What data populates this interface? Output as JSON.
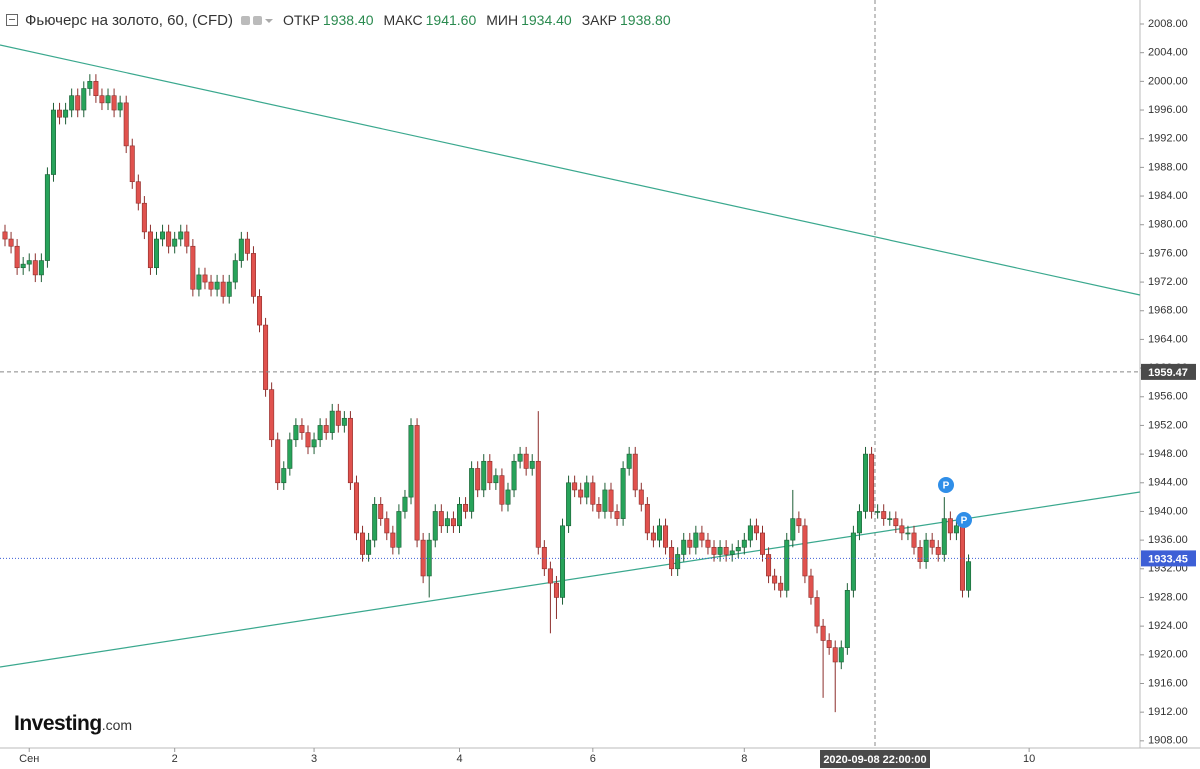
{
  "chart_data": {
    "type": "candlestick",
    "title": "Фьючерс на золото, 60, (CFD)",
    "up_color": "#27a35a",
    "down_color": "#e0524e",
    "grid": false,
    "ylim": [
      1907.0,
      2011.35
    ],
    "yticks": [
      {
        "value": 1908,
        "label": "1908.00"
      },
      {
        "value": 1912,
        "label": "1912.00"
      },
      {
        "value": 1916,
        "label": "1916.00"
      },
      {
        "value": 1920,
        "label": "1920.00"
      },
      {
        "value": 1924,
        "label": "1924.00"
      },
      {
        "value": 1928,
        "label": "1928.00"
      },
      {
        "value": 1932,
        "label": "1932.00"
      },
      {
        "value": 1936,
        "label": "1936.00"
      },
      {
        "value": 1940,
        "label": "1940.00"
      },
      {
        "value": 1944,
        "label": "1944.00"
      },
      {
        "value": 1948,
        "label": "1948.00"
      },
      {
        "value": 1952,
        "label": "1952.00"
      },
      {
        "value": 1956,
        "label": "1956.00"
      },
      {
        "value": 1960,
        "label": "1960.00"
      },
      {
        "value": 1964,
        "label": "1964.00"
      },
      {
        "value": 1968,
        "label": "1968.00"
      },
      {
        "value": 1972,
        "label": "1972.00"
      },
      {
        "value": 1976,
        "label": "1976.00"
      },
      {
        "value": 1980,
        "label": "1980.00"
      },
      {
        "value": 1984,
        "label": "1984.00"
      },
      {
        "value": 1988,
        "label": "1988.00"
      },
      {
        "value": 1992,
        "label": "1992.00"
      },
      {
        "value": 1996,
        "label": "1996.00"
      },
      {
        "value": 2000,
        "label": "2000.00"
      },
      {
        "value": 2004,
        "label": "2004.00"
      },
      {
        "value": 2008,
        "label": "2008.00"
      }
    ],
    "categories": [
      null,
      null,
      null,
      null,
      "Сен",
      null,
      null,
      null,
      null,
      null,
      null,
      null,
      null,
      null,
      null,
      null,
      null,
      null,
      null,
      null,
      null,
      null,
      null,
      null,
      null,
      null,
      null,
      null,
      "2",
      null,
      null,
      null,
      null,
      null,
      null,
      null,
      null,
      null,
      null,
      null,
      null,
      null,
      null,
      null,
      null,
      null,
      null,
      null,
      null,
      null,
      null,
      "3",
      null,
      null,
      null,
      null,
      null,
      null,
      null,
      null,
      null,
      null,
      null,
      null,
      null,
      null,
      null,
      null,
      null,
      null,
      null,
      null,
      null,
      null,
      null,
      "4",
      null,
      null,
      null,
      null,
      null,
      null,
      null,
      null,
      null,
      null,
      null,
      null,
      null,
      null,
      null,
      null,
      null,
      null,
      null,
      null,
      null,
      "6",
      null,
      null,
      null,
      null,
      null,
      null,
      null,
      null,
      null,
      null,
      null,
      null,
      null,
      null,
      null,
      null,
      null,
      null,
      null,
      null,
      null,
      null,
      null,
      null,
      "8",
      null,
      null,
      null,
      null,
      null,
      null,
      null,
      null,
      null,
      null,
      null,
      null,
      null,
      null,
      null,
      null,
      null,
      null,
      null,
      null,
      null,
      null,
      null,
      null,
      null,
      null,
      null,
      null,
      null,
      null,
      null,
      null,
      null,
      null,
      null,
      null,
      null,
      null,
      null,
      null,
      null,
      null,
      null,
      null,
      null,
      null,
      "10"
    ],
    "open": [
      1979,
      1978,
      1977,
      1974,
      1974.5,
      1975,
      1973,
      1975,
      1987,
      1996,
      1995,
      1996,
      1998,
      1996,
      1999,
      2000,
      1998,
      1997,
      1998,
      1996,
      1997,
      1991,
      1986,
      1983,
      1979,
      1974,
      1978,
      1979,
      1977,
      1978,
      1979,
      1977,
      1971,
      1973,
      1972,
      1971,
      1972,
      1970,
      1972,
      1975,
      1978,
      1976,
      1970,
      1966,
      1957,
      1950,
      1944,
      1946,
      1950,
      1952,
      1951,
      1949,
      1950,
      1952,
      1951,
      1954,
      1952,
      1953,
      1944,
      1937,
      1934,
      1936,
      1941,
      1939,
      1937,
      1935,
      1940,
      1942,
      1952,
      1936,
      1931,
      1936,
      1940,
      1938,
      1939,
      1938,
      1941,
      1940,
      1946,
      1943,
      1947,
      1944,
      1945,
      1941,
      1943,
      1947,
      1948,
      1946,
      1947,
      1935,
      1932,
      1930,
      1928,
      1938,
      1944,
      1943,
      1942,
      1944,
      1941,
      1940,
      1943,
      1940,
      1939,
      1946,
      1948,
      1943,
      1941,
      1937,
      1936,
      1938,
      1935,
      1932,
      1934,
      1936,
      1935,
      1937,
      1936,
      1935,
      1934,
      1935,
      1934,
      1934.5,
      1935,
      1936,
      1938,
      1937,
      1934,
      1931,
      1930,
      1929,
      1936,
      1939,
      1938,
      1931,
      1928,
      1924,
      1922,
      1921,
      1919,
      1921,
      1929,
      1937,
      1940,
      1948,
      1940,
      1940,
      1939,
      1939,
      1938,
      1937,
      1937,
      1935,
      1933,
      1936,
      1935,
      1934,
      1939,
      1937,
      1938,
      1929,
      null,
      null,
      null,
      null,
      null,
      null,
      null,
      null,
      null,
      null
    ],
    "high": [
      1980,
      1979,
      1978,
      1975.5,
      1976,
      1976,
      1976,
      1988,
      1997,
      1997,
      1997,
      1999,
      1999,
      2000,
      2001,
      2001,
      1999,
      1999,
      1999,
      1998,
      1998,
      1992,
      1987,
      1984,
      1980,
      1979,
      1980,
      1980,
      1979,
      1980,
      1980,
      1978,
      1974,
      1974,
      1973,
      1973,
      1973,
      1973,
      1976,
      1979,
      1979,
      1977,
      1971,
      1967,
      1958,
      1951,
      1947,
      1951,
      1953,
      1953,
      1952,
      1951,
      1953,
      1953,
      1955,
      1955,
      1954,
      1954,
      1945,
      1938,
      1937,
      1942,
      1942,
      1940,
      1938,
      1941,
      1943,
      1953,
      1953,
      1937,
      1937,
      1941,
      1941,
      1940,
      1940,
      1942,
      1942,
      1947,
      1947,
      1948,
      1948,
      1946,
      1946,
      1944,
      1948,
      1949,
      1949,
      1948,
      1954,
      1936,
      1933,
      1931,
      1939,
      1945,
      1945,
      1944,
      1945,
      1945,
      1942,
      1944,
      1944,
      1941,
      1947,
      1949,
      1949,
      1944,
      1942,
      1938,
      1939,
      1939,
      1936,
      1935,
      1937,
      1937,
      1938,
      1938,
      1937,
      1936,
      1936,
      1936,
      1935.5,
      1936,
      1937,
      1939,
      1939,
      1938,
      1935,
      1932,
      1931,
      1937,
      1943,
      1940,
      1939,
      1932,
      1929,
      1925,
      1923,
      1922,
      1922,
      1930,
      1938,
      1941,
      1949,
      1949,
      1941,
      1941,
      1940,
      1940,
      1939,
      1938,
      1938,
      1936,
      1937,
      1937,
      1936,
      1942,
      1940,
      1939,
      1939,
      1934,
      null,
      null,
      null,
      null,
      null,
      null,
      null,
      null,
      null,
      null
    ],
    "low": [
      1977,
      1976,
      1973,
      1973,
      1973.5,
      1972,
      1972,
      1974,
      1986,
      1994,
      1994,
      1995,
      1995,
      1995,
      1998,
      1997,
      1996,
      1996,
      1995,
      1995,
      1990,
      1985,
      1982,
      1978,
      1973,
      1973,
      1977,
      1976,
      1976,
      1977,
      1976,
      1970,
      1970,
      1971,
      1970,
      1970,
      1969,
      1969,
      1971,
      1974,
      1975,
      1969,
      1965,
      1956,
      1949,
      1943,
      1943,
      1945,
      1949,
      1950,
      1948,
      1948,
      1949,
      1950,
      1950,
      1951,
      1951,
      1943,
      1936,
      1933,
      1933,
      1935,
      1938,
      1936,
      1934,
      1934,
      1939,
      1941,
      1935,
      1930,
      1928,
      1935,
      1937,
      1937,
      1937,
      1937,
      1939,
      1939,
      1942,
      1942,
      1943,
      1943,
      1940,
      1940,
      1942,
      1946,
      1945,
      1945,
      1934,
      1931,
      1923,
      1925,
      1927,
      1937,
      1942,
      1941,
      1941,
      1940,
      1939,
      1939,
      1939,
      1938,
      1938,
      1945,
      1942,
      1940,
      1936,
      1935,
      1935,
      1934,
      1931,
      1931,
      1933,
      1934,
      1934,
      1935,
      1934,
      1933,
      1933,
      1933,
      1933,
      1933.5,
      1934,
      1935,
      1936,
      1933,
      1930,
      1929,
      1928,
      1928,
      1935,
      1937,
      1930,
      1927,
      1923,
      1914,
      1920,
      1912,
      1918,
      1920,
      1928,
      1936,
      1939,
      1939,
      1939,
      1938,
      1938,
      1937,
      1936,
      1936,
      1934,
      1932,
      1932,
      1934,
      1933,
      1933,
      1936,
      1936,
      1928,
      1928,
      null,
      null,
      null,
      null,
      null,
      null,
      null,
      null,
      null,
      null
    ],
    "close": [
      1978,
      1977,
      1974,
      1974.5,
      1975,
      1973,
      1975,
      1987,
      1996,
      1995,
      1996,
      1998,
      1996,
      1999,
      2000,
      1998,
      1997,
      1998,
      1996,
      1997,
      1991,
      1986,
      1983,
      1979,
      1974,
      1978,
      1979,
      1977,
      1978,
      1979,
      1977,
      1971,
      1973,
      1972,
      1971,
      1972,
      1970,
      1972,
      1975,
      1978,
      1976,
      1970,
      1966,
      1957,
      1950,
      1944,
      1946,
      1950,
      1952,
      1951,
      1949,
      1950,
      1952,
      1951,
      1954,
      1952,
      1953,
      1944,
      1937,
      1934,
      1936,
      1941,
      1939,
      1937,
      1935,
      1940,
      1942,
      1952,
      1936,
      1931,
      1936,
      1940,
      1938,
      1939,
      1938,
      1941,
      1940,
      1946,
      1943,
      1947,
      1944,
      1945,
      1941,
      1943,
      1947,
      1948,
      1946,
      1947,
      1935,
      1932,
      1930,
      1928,
      1938,
      1944,
      1943,
      1942,
      1944,
      1941,
      1940,
      1943,
      1940,
      1939,
      1946,
      1948,
      1943,
      1941,
      1937,
      1936,
      1938,
      1935,
      1932,
      1934,
      1936,
      1935,
      1937,
      1936,
      1935,
      1934,
      1935,
      1934,
      1934.5,
      1935,
      1936,
      1938,
      1937,
      1934,
      1931,
      1930,
      1929,
      1936,
      1939,
      1938,
      1931,
      1928,
      1924,
      1922,
      1921,
      1919,
      1921,
      1929,
      1937,
      1940,
      1948,
      1940,
      1940,
      1939,
      1939,
      1938,
      1937,
      1937,
      1935,
      1933,
      1936,
      1935,
      1934,
      1939,
      1937,
      1938,
      1929,
      1933,
      null,
      null,
      null,
      null,
      null,
      null,
      null,
      null,
      null,
      null
    ],
    "last_price": 1933.45,
    "last_price_color": "#3d5fd6",
    "crosshair": {
      "price": 1959.47,
      "time": "2020-09-08 22:00:00"
    }
  },
  "ohlc_header": [
    {
      "label": "ОТКР",
      "value": "1938.40"
    },
    {
      "label": "МАКС",
      "value": "1941.60"
    },
    {
      "label": "МИН",
      "value": "1934.40"
    },
    {
      "label": "ЗАКР",
      "value": "1938.80"
    }
  ],
  "event_markers": [
    {
      "label": "P"
    },
    {
      "label": "P"
    }
  ],
  "logo": {
    "name": "Investing",
    "suffix": ".com"
  }
}
